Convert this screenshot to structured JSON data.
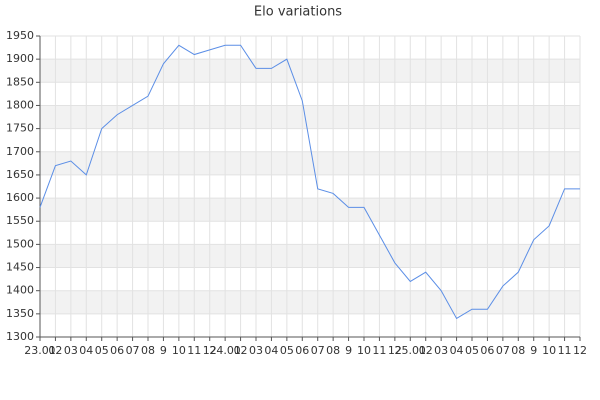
{
  "chart_data": {
    "type": "line",
    "title": "Elo variations",
    "categories": [
      "23.01",
      "02",
      "03",
      "04",
      "05",
      "06",
      "07",
      "08",
      "9",
      "10",
      "11",
      "12",
      "24.01",
      "02",
      "03",
      "04",
      "05",
      "06",
      "07",
      "08",
      "9",
      "10",
      "11",
      "12",
      "25.01",
      "02",
      "03",
      "04",
      "05",
      "06",
      "07",
      "08",
      "9",
      "10",
      "11",
      "12"
    ],
    "series": [
      {
        "name": "Elo",
        "color": "#5b8ee6",
        "values": [
          1580,
          1670,
          1680,
          1650,
          1750,
          1780,
          1800,
          1820,
          1890,
          1930,
          1910,
          1920,
          1930,
          1930,
          1880,
          1880,
          1900,
          1810,
          1620,
          1610,
          1580,
          1580,
          1520,
          1460,
          1420,
          1440,
          1400,
          1340,
          1360,
          1360,
          1410,
          1440,
          1510,
          1540,
          1620,
          1620
        ]
      }
    ],
    "ylim": [
      1300,
      1950
    ],
    "yticks": [
      1300,
      1350,
      1400,
      1450,
      1500,
      1550,
      1600,
      1650,
      1700,
      1750,
      1800,
      1850,
      1900,
      1950
    ],
    "grid": true,
    "legend": false
  }
}
